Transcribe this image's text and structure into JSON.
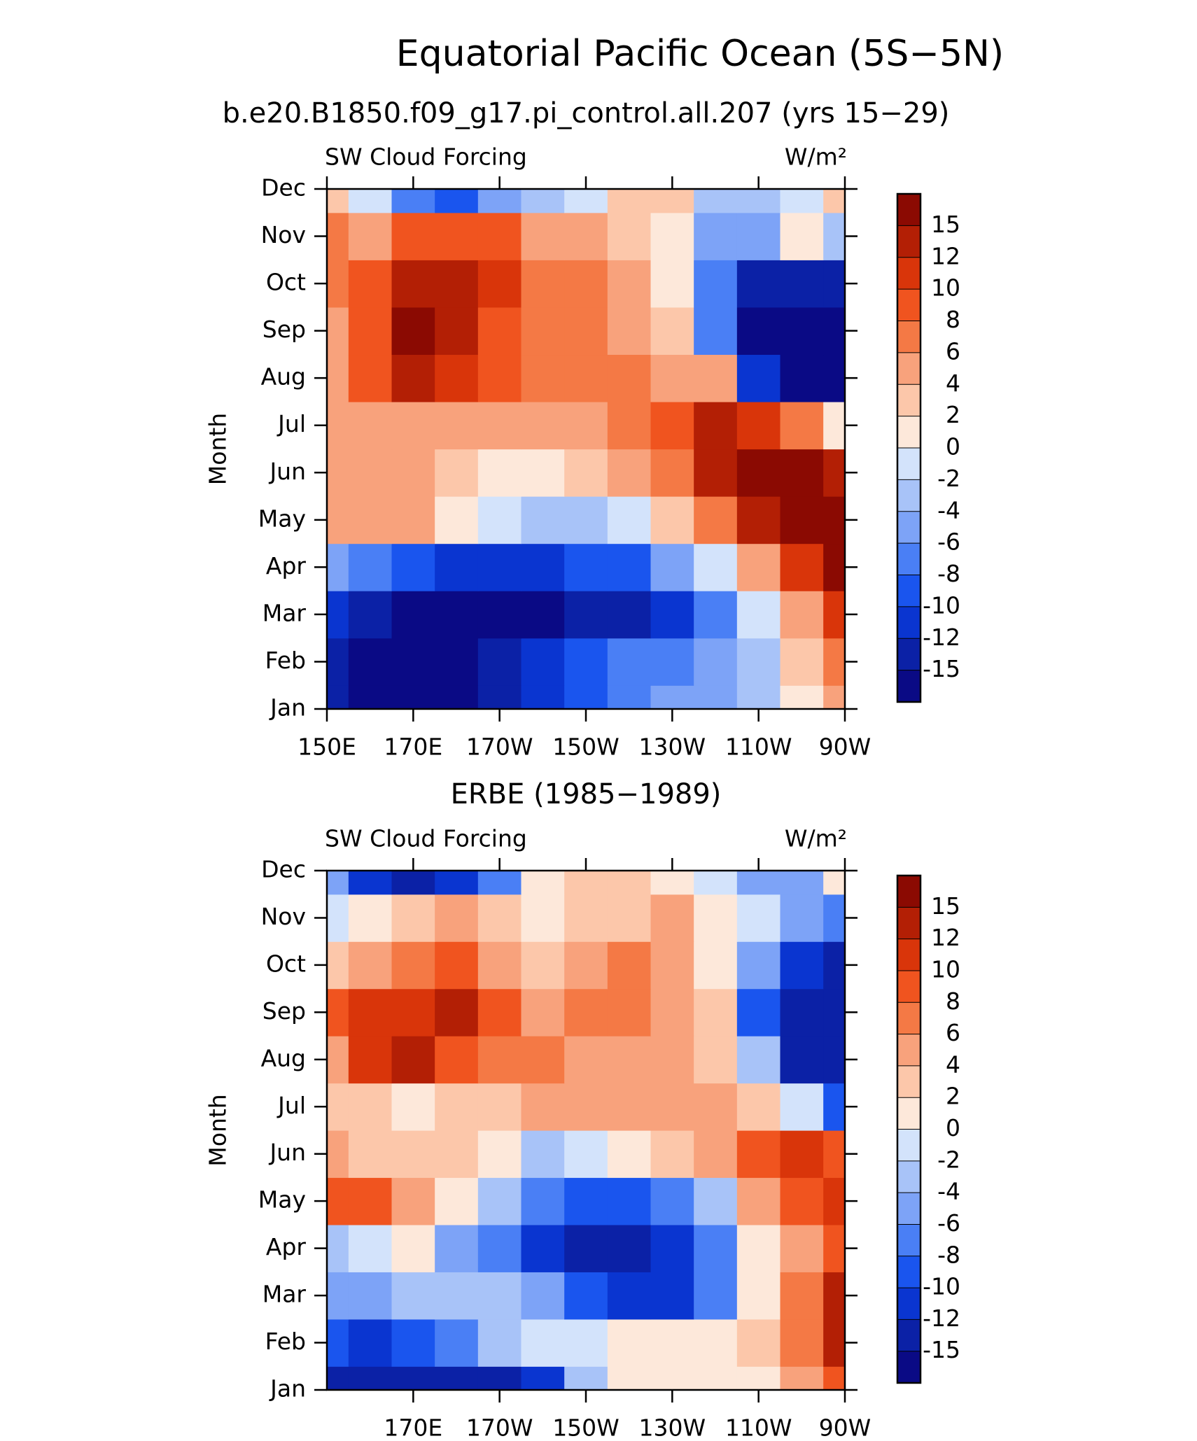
{
  "title": "Equatorial Pacific Ocean (5S−5N)",
  "chart_data": [
    {
      "type": "contour",
      "title": "b.e20.B1850.f09_g17.pi_control.all.207 (yrs 15−29)",
      "label_left": "SW Cloud Forcing",
      "label_right": "W/m²",
      "ylabel": "Month",
      "categories": [
        "Jan",
        "Feb",
        "Mar",
        "Apr",
        "May",
        "Jun",
        "Jul",
        "Aug",
        "Sep",
        "Oct",
        "Nov",
        "Dec"
      ],
      "x": [
        150,
        160,
        170,
        180,
        190,
        200,
        210,
        220,
        230,
        240,
        250,
        260,
        270
      ],
      "xlim": [
        150,
        270
      ],
      "xticks": [
        {
          "value": 150,
          "label": "150E"
        },
        {
          "value": 170,
          "label": "170E"
        },
        {
          "value": 190,
          "label": "170W"
        },
        {
          "value": 210,
          "label": "150W"
        },
        {
          "value": 230,
          "label": "130W"
        },
        {
          "value": 250,
          "label": "110W"
        },
        {
          "value": 270,
          "label": "90W"
        }
      ],
      "z": [
        [
          -14,
          -16,
          -16,
          -16,
          -13,
          -10,
          -8,
          -6,
          -5,
          -5,
          -3,
          1,
          5
        ],
        [
          -13,
          -15,
          -16,
          -16,
          -14,
          -11,
          -9,
          -7,
          -6,
          -5,
          -2,
          3,
          8
        ],
        [
          -10,
          -13,
          -15,
          -16,
          -15,
          -16,
          -14,
          -12,
          -10,
          -6,
          -1,
          6,
          12
        ],
        [
          -4,
          -7,
          -9,
          -10,
          -11,
          -10,
          -9,
          -8,
          -4,
          0,
          5,
          12,
          16
        ],
        [
          5,
          6,
          5,
          2,
          -1,
          -3,
          -2,
          0,
          3,
          8,
          13,
          16,
          16
        ],
        [
          5,
          5,
          6,
          4,
          2,
          1,
          3,
          5,
          8,
          13,
          16,
          16,
          14
        ],
        [
          5,
          6,
          6,
          6,
          6,
          6,
          6,
          7,
          10,
          13,
          12,
          8,
          2
        ],
        [
          6,
          10,
          13,
          12,
          9,
          8,
          7,
          7,
          6,
          5,
          -10,
          -16,
          -16
        ],
        [
          6,
          10,
          16,
          14,
          10,
          8,
          7,
          6,
          3,
          -6,
          -16,
          -16,
          -16
        ],
        [
          7,
          10,
          14,
          13,
          11,
          8,
          7,
          6,
          2,
          -7,
          -12,
          -14,
          -14
        ],
        [
          8,
          6,
          9,
          10,
          9,
          6,
          5,
          4,
          1,
          -4,
          -4,
          1,
          -3
        ],
        [
          4,
          0,
          -6,
          -8,
          -4,
          -2,
          0,
          3,
          3,
          -2,
          -2,
          -1,
          3
        ]
      ],
      "levels": [
        -15,
        -12,
        -10,
        -8,
        -6,
        -4,
        -2,
        0,
        2,
        4,
        6,
        8,
        10,
        12,
        15
      ],
      "colors": [
        "#0a0a85",
        "#0b21a6",
        "#0a35d0",
        "#1a55ee",
        "#4a7ff5",
        "#7da3f7",
        "#a8c3f8",
        "#d3e3fb",
        "#fde8da",
        "#fcc7aa",
        "#f8a27c",
        "#f47945",
        "#f0541f",
        "#d9350a",
        "#b31f05",
        "#8b0a02"
      ]
    },
    {
      "type": "contour",
      "title": "ERBE (1985−1989)",
      "label_left": "SW Cloud Forcing",
      "label_right": "W/m²",
      "ylabel": "Month",
      "categories": [
        "Jan",
        "Feb",
        "Mar",
        "Apr",
        "May",
        "Jun",
        "Jul",
        "Aug",
        "Sep",
        "Oct",
        "Nov",
        "Dec"
      ],
      "x": [
        150,
        160,
        170,
        180,
        190,
        200,
        210,
        220,
        230,
        240,
        250,
        260,
        270
      ],
      "xlim": [
        150,
        270
      ],
      "xticks": [
        {
          "value": 170,
          "label": "170E"
        },
        {
          "value": 190,
          "label": "170W"
        },
        {
          "value": 210,
          "label": "150W"
        },
        {
          "value": 230,
          "label": "130W"
        },
        {
          "value": 250,
          "label": "110W"
        },
        {
          "value": 270,
          "label": "90W"
        }
      ],
      "z": [
        [
          -12,
          -13,
          -14,
          -13,
          -12,
          -10,
          -2,
          1,
          1,
          1,
          2,
          5,
          9
        ],
        [
          -8,
          -10,
          -8,
          -6,
          -3,
          -1,
          0,
          1,
          1,
          1,
          3,
          8,
          13
        ],
        [
          -4,
          -4,
          -3,
          -2,
          -3,
          -5,
          -8,
          -10,
          -10,
          -6,
          1,
          7,
          14
        ],
        [
          -2,
          -1,
          1,
          -4,
          -7,
          -10,
          -12,
          -13,
          -11,
          -7,
          2,
          6,
          10
        ],
        [
          9,
          9,
          5,
          2,
          -2,
          -6,
          -8,
          -9,
          -7,
          -2,
          5,
          10,
          12
        ],
        [
          5,
          4,
          3,
          3,
          1,
          -2,
          -1,
          1,
          3,
          6,
          10,
          12,
          9
        ],
        [
          4,
          3,
          1,
          4,
          3,
          5,
          6,
          6,
          6,
          5,
          4,
          0,
          -8
        ],
        [
          5,
          12,
          13,
          10,
          8,
          7,
          6,
          6,
          5,
          4,
          -3,
          -12,
          -14
        ],
        [
          10,
          12,
          12,
          13,
          9,
          6,
          7,
          8,
          6,
          4,
          -8,
          -14,
          -14
        ],
        [
          3,
          6,
          8,
          10,
          6,
          4,
          6,
          8,
          5,
          2,
          -4,
          -10,
          -12
        ],
        [
          -1,
          1,
          4,
          6,
          4,
          2,
          3,
          4,
          6,
          2,
          -1,
          -4,
          -6
        ],
        [
          -5,
          -10,
          -12,
          -10,
          -6,
          2,
          3,
          3,
          2,
          0,
          -4,
          -5,
          2
        ]
      ],
      "levels": [
        -15,
        -12,
        -10,
        -8,
        -6,
        -4,
        -2,
        0,
        2,
        4,
        6,
        8,
        10,
        12,
        15
      ],
      "colors": [
        "#0a0a85",
        "#0b21a6",
        "#0a35d0",
        "#1a55ee",
        "#4a7ff5",
        "#7da3f7",
        "#a8c3f8",
        "#d3e3fb",
        "#fde8da",
        "#fcc7aa",
        "#f8a27c",
        "#f47945",
        "#f0541f",
        "#d9350a",
        "#b31f05",
        "#8b0a02"
      ]
    }
  ]
}
